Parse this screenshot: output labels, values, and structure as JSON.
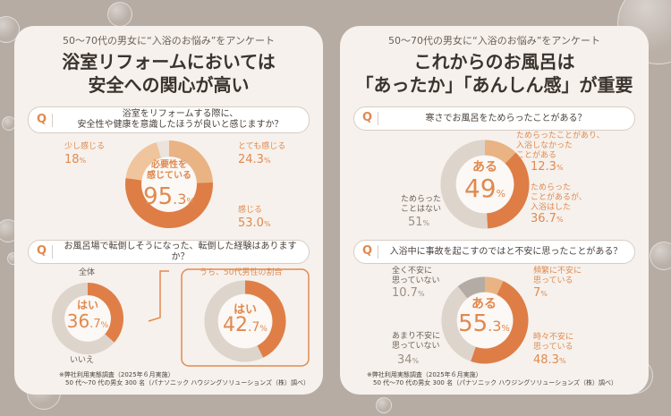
{
  "left": {
    "subtitle": "50～70代の男女に“入浴のお悩み”をアンケート",
    "title1": "浴室リフォームにおいては",
    "title2": "安全への関心が高い",
    "q1": {
      "mark": "Q",
      "text1": "浴室をリフォームする際に、",
      "text2": "安全性や健康を意識したほうが良いと感じますか？"
    },
    "q2": {
      "mark": "Q",
      "text": "お風呂場で転倒しそうになった、転倒した経験はありますか？"
    },
    "sub_label_all": "全体",
    "sub_label_male50": "うち、50代男性の割合",
    "note1": "※弊社利用実態調査（2025年６月実施）",
    "note2": "　50 代～70 代の男女 300 名（パナソニック ハウジングソリューションズ（株）調べ）"
  },
  "right": {
    "subtitle": "50～70代の男女に“入浴のお悩み”をアンケート",
    "title1": "これからのお風呂は",
    "title2": "「あったか」「あんしん感」が重要",
    "q1": {
      "mark": "Q",
      "text": "寒さでお風呂をためらったことがある？"
    },
    "q2": {
      "mark": "Q",
      "text": "入浴中に事故を起こすのではと不安に思ったことがある？"
    },
    "note1": "※弊社利用実態調査（2025年６月実施）",
    "note2": "　50 代～70 代の男女 300 名（パナソニック ハウジングソリューションズ（株）調べ）"
  },
  "chart_data": [
    {
      "type": "pie",
      "id": "safety",
      "center_l1": "必要性を",
      "center_l2": "感じている",
      "center_value": "95",
      "center_dec": ".3",
      "unit": "%",
      "slices": [
        {
          "label": "とても感じる",
          "value": 24.3,
          "color": "#e9b384"
        },
        {
          "label": "感じる",
          "value": 53.0,
          "color": "#de7d45"
        },
        {
          "label": "少し感じる",
          "value": 18.0,
          "color": "#f0c49c"
        }
      ],
      "rest_color": "#ece4dc"
    },
    {
      "type": "pie",
      "id": "fall_all",
      "center_label": "はい",
      "center_value": "36",
      "center_dec": ".7",
      "unit": "%",
      "slices": [
        {
          "label": "はい",
          "value": 36.7,
          "color": "#df7f47"
        },
        {
          "label": "いいえ",
          "value": 63.3,
          "color": "#ddd4cb"
        }
      ]
    },
    {
      "type": "pie",
      "id": "fall_male50",
      "center_label": "はい",
      "center_value": "42",
      "center_dec": ".7",
      "unit": "%",
      "slices": [
        {
          "label": "はい",
          "value": 42.7,
          "color": "#df7f47"
        },
        {
          "label": "いいえ",
          "value": 57.3,
          "color": "#ddd4cb"
        }
      ]
    },
    {
      "type": "pie",
      "id": "cold",
      "center_label": "ある",
      "center_value": "49",
      "unit": "%",
      "slices": [
        {
          "label1": "ためらったことがあり、",
          "label2": "入浴しなかった",
          "label3": "ことがある",
          "value": 12.3,
          "color": "#e9b384"
        },
        {
          "label1": "ためらった",
          "label2": "ことがあるが、",
          "label3": "入浴はした",
          "value": 36.7,
          "color": "#de7d45"
        },
        {
          "label1": "ためらった",
          "label2": "ことはない",
          "label3": "",
          "value": 51,
          "color": "#ddd4cb"
        }
      ]
    },
    {
      "type": "pie",
      "id": "anxiety",
      "center_label": "ある",
      "center_value": "55",
      "center_dec": ".3",
      "unit": "%",
      "slices": [
        {
          "label1": "頻繁に不安に",
          "label2": "思っている",
          "value": 7,
          "color": "#e9b384"
        },
        {
          "label1": "時々不安に",
          "label2": "思っている",
          "value": 48.3,
          "color": "#de7d45"
        },
        {
          "label1": "あまり不安に",
          "label2": "思っていない",
          "value": 34,
          "color": "#ddd4cb"
        },
        {
          "label1": "全く不安に",
          "label2": "思っていない",
          "value": 10.7,
          "color": "#b4aca4"
        }
      ]
    }
  ]
}
